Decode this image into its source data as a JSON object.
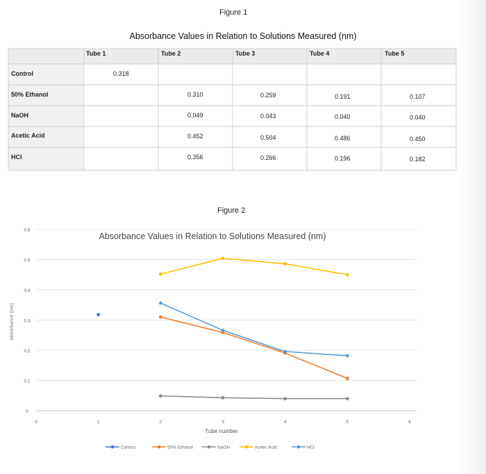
{
  "figure1": {
    "caption": "Figure 1",
    "title": "Absorbance Values in Relation to Solutions Measured (nm)",
    "columns": [
      "Tube 1",
      "Tube 2",
      "Tube 3",
      "Tube 4",
      "Tube 5"
    ],
    "rows": [
      {
        "label": "Control",
        "values": [
          "0.318",
          "",
          "",
          "",
          ""
        ]
      },
      {
        "label": "50% Ethanol",
        "values": [
          "",
          "0.310",
          "0.259",
          "0.191",
          "0.107"
        ]
      },
      {
        "label": "NaOH",
        "values": [
          "",
          "0.049",
          "0.043",
          "0.040",
          "0.040"
        ]
      },
      {
        "label": "Acetic Acid",
        "values": [
          "",
          "0.452",
          "0.504",
          "0.486",
          "0.450"
        ]
      },
      {
        "label": "HCl",
        "values": [
          "",
          "0.356",
          "0.266",
          "0.196",
          "0.182"
        ]
      }
    ]
  },
  "figure2": {
    "caption": "Figure 2"
  },
  "chart_data": {
    "type": "line",
    "title": "Absorbance Values in Relation to Solutions Measured (nm)",
    "xlabel": "Tube number",
    "ylabel": "Absorbance (nm)",
    "xlim": [
      0,
      6
    ],
    "ylim": [
      0,
      0.6
    ],
    "x_ticks": [
      "0",
      "1",
      "2",
      "3",
      "4",
      "5",
      "6"
    ],
    "y_ticks": [
      "0",
      "0.1",
      "0.2",
      "0.3",
      "0.4",
      "0.5",
      "0.6"
    ],
    "grid": "horizontal",
    "legend_position": "bottom",
    "series": [
      {
        "name": "Control",
        "color": "#4472c4",
        "points": [
          [
            1,
            0.318
          ]
        ]
      },
      {
        "name": "50% Ethanol",
        "color": "#ed7d31",
        "points": [
          [
            2,
            0.31
          ],
          [
            3,
            0.259
          ],
          [
            4,
            0.191
          ],
          [
            5,
            0.107
          ]
        ]
      },
      {
        "name": "NaOH",
        "color": "#8c8c8c",
        "points": [
          [
            2,
            0.049
          ],
          [
            3,
            0.043
          ],
          [
            4,
            0.04
          ],
          [
            5,
            0.04
          ]
        ]
      },
      {
        "name": "Acetic Acid",
        "color": "#ffc000",
        "points": [
          [
            2,
            0.452
          ],
          [
            3,
            0.504
          ],
          [
            4,
            0.486
          ],
          [
            5,
            0.45
          ]
        ]
      },
      {
        "name": "HCl",
        "color": "#5b9bd5",
        "points": [
          [
            2,
            0.356
          ],
          [
            3,
            0.266
          ],
          [
            4,
            0.196
          ],
          [
            5,
            0.182
          ]
        ]
      }
    ]
  }
}
